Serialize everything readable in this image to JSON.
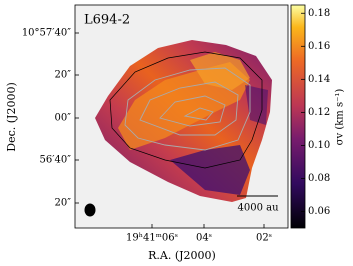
{
  "chart_data": {
    "type": "image",
    "panel_label": "L694-2",
    "xlabel": "R.A. (J2000)",
    "ylabel": "Dec. (J2000)",
    "x_tick_labels": [
      "19ʰ41ᵐ06ˢ",
      "04ˢ",
      "02ˢ"
    ],
    "y_tick_labels": [
      "10°57′40″",
      "20″",
      "00″",
      "56′40″",
      "20″"
    ],
    "scalebar_label": "4000 au",
    "colorbar_label": "σv (km s⁻¹)",
    "colormap": "inferno",
    "ylim": [
      0.05,
      0.185
    ],
    "yticks": [
      0.06,
      0.08,
      0.1,
      0.12,
      0.14,
      0.16,
      0.18
    ]
  }
}
